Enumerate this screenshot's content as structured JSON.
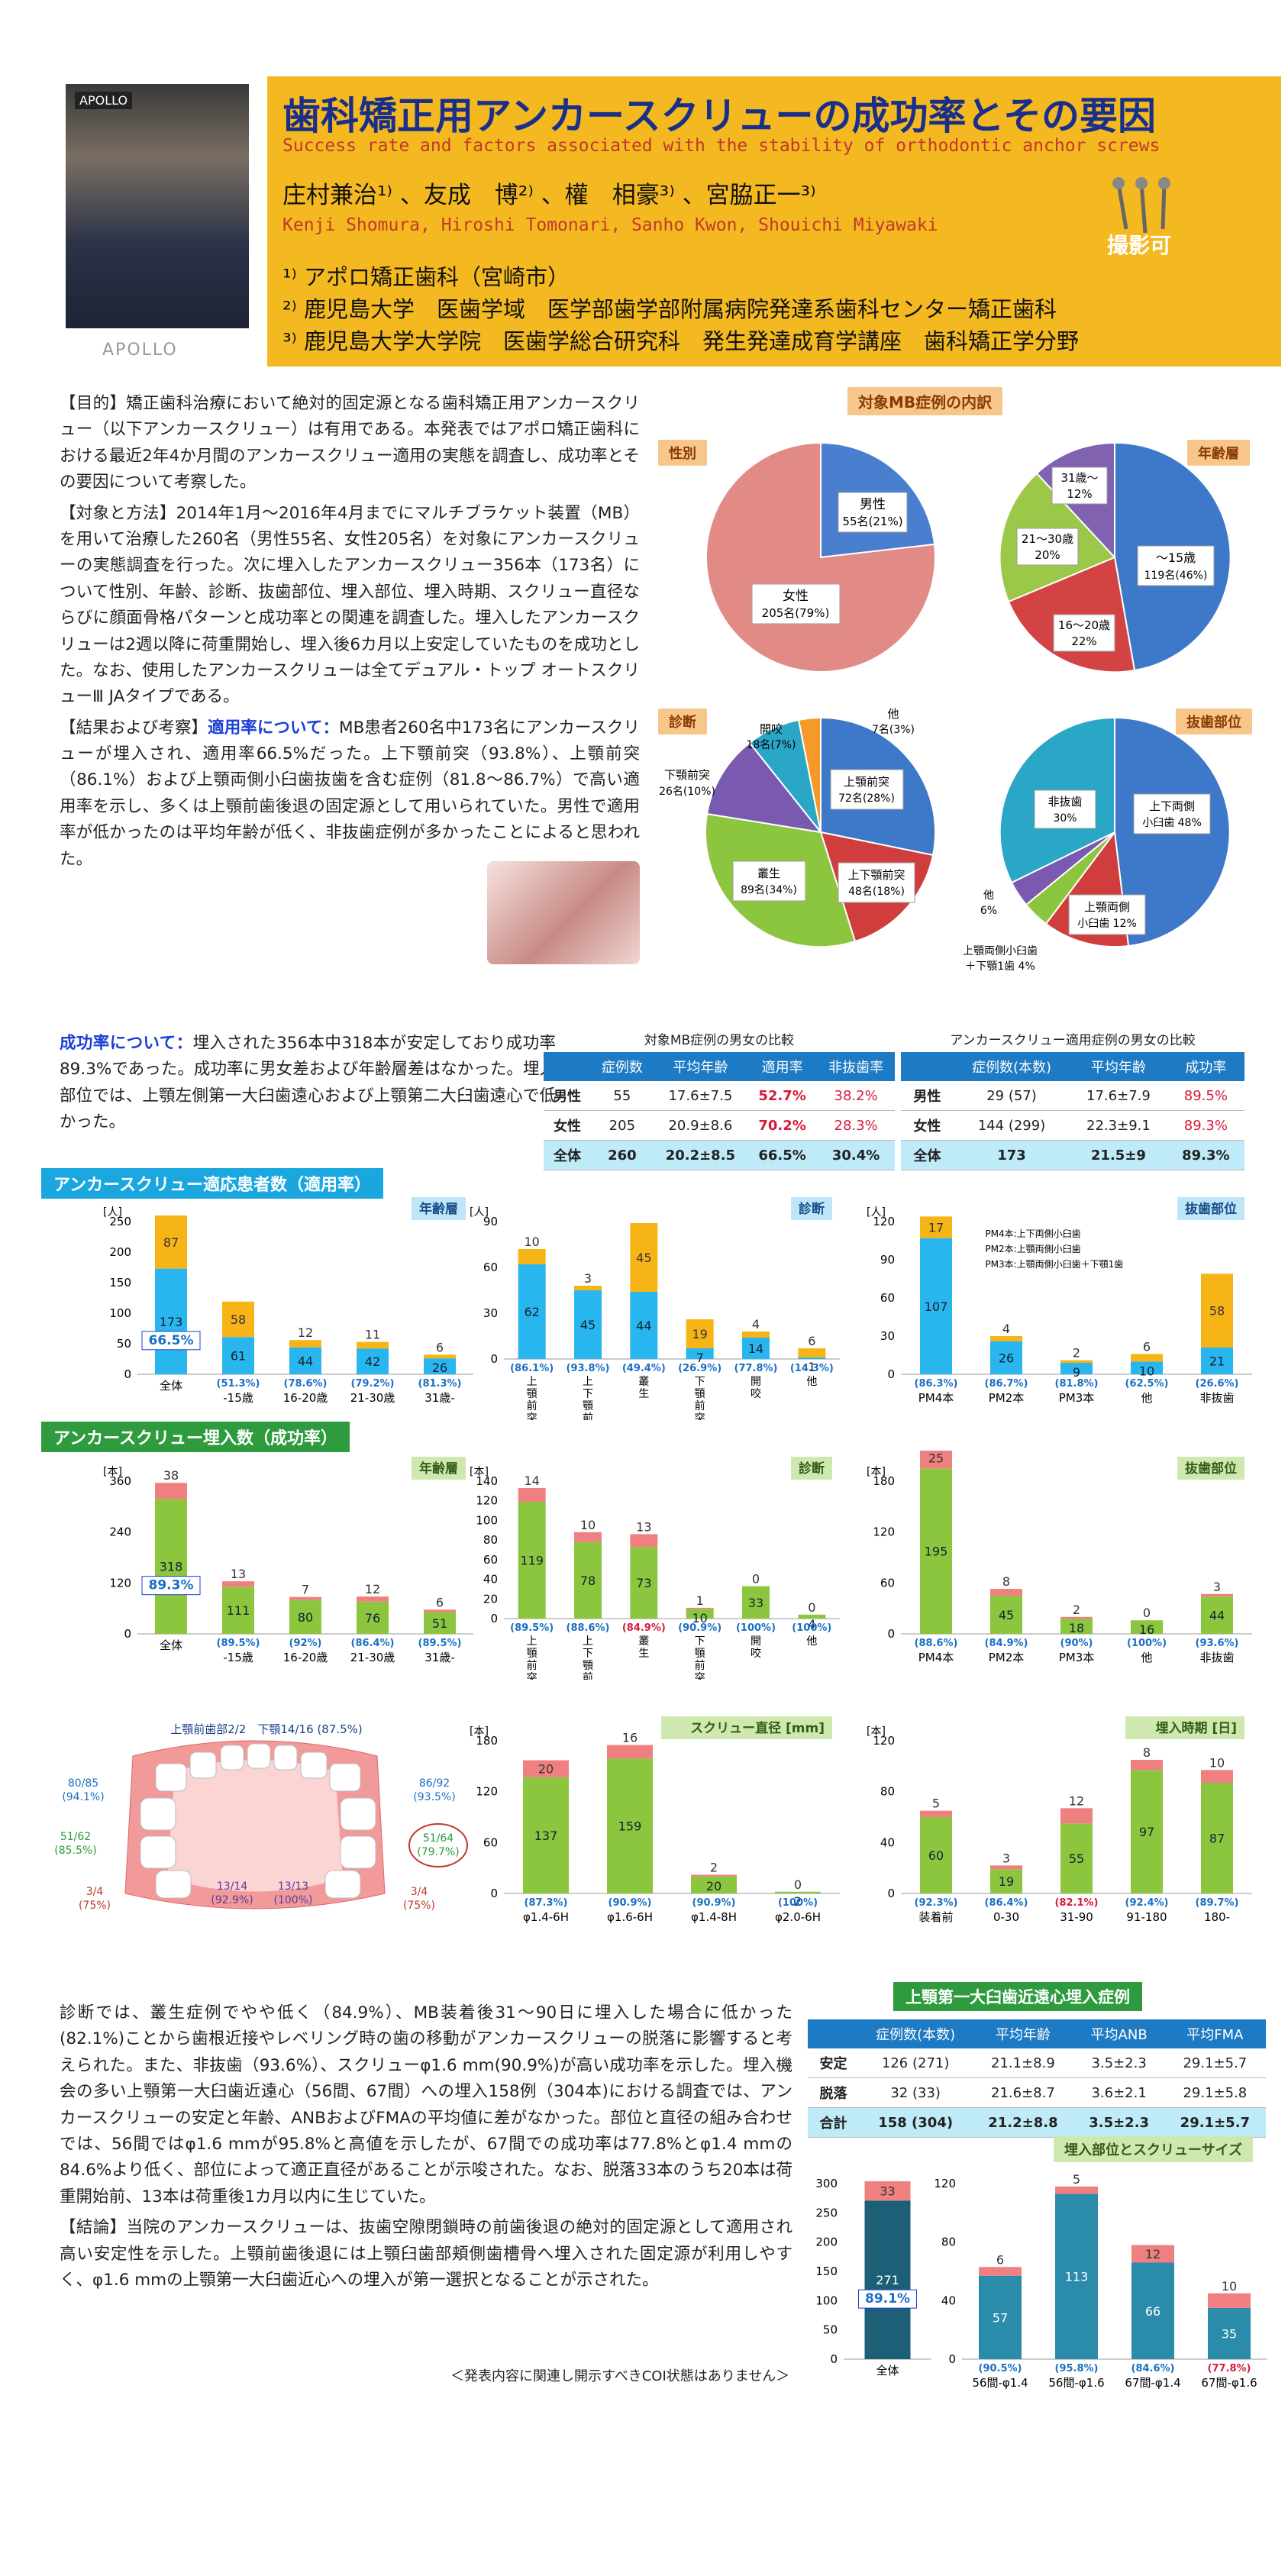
{
  "header": {
    "title": "歯科矯正用アンカースクリューの成功率とその要因",
    "subtitle": "Success rate and factors associated with the stability of orthodontic anchor screws",
    "authors": "庄村兼治¹⁾ 、友成　博²⁾ 、權　相豪³⁾ 、宮脇正一³⁾",
    "authors_en": "Kenji Shomura, Hiroshi Tomonari, Sanho Kwon, Shouichi Miyawaki",
    "affil1": "¹⁾ アポロ矯正歯科（宮崎市）",
    "affil2": "²⁾ 鹿児島大学　医歯学域　医学部歯学部附属病院発達系歯科センター矯正歯科",
    "affil3": "³⁾ 鹿児島大学大学院　医歯学総合研究科　発生発達成育学講座　歯科矯正学分野",
    "photo_logo": "APOLLO",
    "apollo": "APOLLO",
    "photo_ok": "撮影可"
  },
  "intro": {
    "p1": "【目的】矯正歯科治療において絶対的固定源となる歯科矯正用アンカースクリュー（以下アンカースクリュー）は有用である。本発表ではアポロ矯正歯科における最近2年4か月間のアンカースクリュー適用の実態を調査し、成功率とその要因について考察した。",
    "p2": "【対象と方法】2014年1月～2016年4月までにマルチブラケット装置（MB）を用いて治療した260名（男性55名、女性205名）を対象にアンカースクリューの実態調査を行った。次に埋入したアンカースクリュー356本（173名）について性別、年齢、診断、抜歯部位、埋入部位、埋入時期、スクリュー直径ならびに顔面骨格パターンと成功率との関連を調査した。埋入したアンカースクリューは2週以降に荷重開始し、埋入後6カ月以上安定していたものを成功とした。なお、使用したアンカースクリューは全てデュアル・トップ オートスクリューⅢ JAタイプである。",
    "p3a": "【結果および考察】",
    "p3b": "適用率について：",
    "p3c": "MB患者260名中173名にアンカースクリューが埋入され、適用率66.5%だった。上下顎前突（93.8%）、上顎前突（86.1%）および上顎両側小臼歯抜歯を含む症例（81.8～86.7%）で高い適用率を示し、多くは上顎前歯後退の固定源として用いられていた。男性で適用率が低かったのは平均年齢が低く、非抜歯症例が多かったことによると思われた。"
  },
  "success_text": {
    "lead": "成功率について：",
    "body": "埋入された356本中318本が安定しており成功率89.3%であった。成功率に男女差および年齢層差はなかった。埋入部位では、上顎左側第一大臼歯遠心および上顎第二大臼歯遠心で低かった。"
  },
  "pies": {
    "title": "対象MB症例の内訳",
    "gender_label": "性別",
    "age_label": "年齢層",
    "diag_label": "診断",
    "ext_label": "抜歯部位",
    "gender_male": "男性",
    "gender_male_v": "55名(21%)",
    "gender_female": "女性",
    "gender_female_v": "205名(79%)",
    "age_a": "～15歳",
    "age_a_v": "119名(46%)",
    "age_b": "16～20歳",
    "age_b_v": "22%",
    "age_c": "21～30歳",
    "age_c_v": "20%",
    "age_d": "31歳～",
    "age_d_v": "12%",
    "diag_a": "上顎前突",
    "diag_a_v": "72名(28%)",
    "diag_b": "上下顎前突",
    "diag_b_v": "48名(18%)",
    "diag_c": "叢生",
    "diag_c_v": "89名(34%)",
    "diag_d": "下顎前突",
    "diag_d_v": "26名(10%)",
    "diag_e": "開咬",
    "diag_e_v": "18名(7%)",
    "diag_f": "他",
    "diag_f_v": "7名(3%)",
    "ext_a": "上下両側",
    "ext_a2": "小臼歯 48%",
    "ext_b": "上顎両側",
    "ext_b2": "小臼歯 12%",
    "ext_c": "上顎両側小臼歯",
    "ext_c2": "＋下顎1歯 4%",
    "ext_d": "他",
    "ext_d2": "6%",
    "ext_e": "非抜歯",
    "ext_e2": "30%"
  },
  "table1": {
    "caption": "対象MB症例の男女の比較",
    "headers": [
      "",
      "症例数",
      "平均年齢",
      "適用率",
      "非抜歯率"
    ],
    "rows": [
      [
        "男性",
        "55",
        "17.6±7.5",
        "52.7%",
        "38.2%"
      ],
      [
        "女性",
        "205",
        "20.9±8.6",
        "70.2%",
        "28.3%"
      ],
      [
        "全体",
        "260",
        "20.2±8.5",
        "66.5%",
        "30.4%"
      ]
    ]
  },
  "table2": {
    "caption": "アンカースクリュー適用症例の男女の比較",
    "headers": [
      "",
      "症例数(本数)",
      "平均年齢",
      "成功率"
    ],
    "rows": [
      [
        "男性",
        "29 (57)",
        "17.6±7.9",
        "89.5%"
      ],
      [
        "女性",
        "144 (299)",
        "22.3±9.1",
        "89.3%"
      ],
      [
        "全体",
        "173",
        "21.5±9",
        "89.3%"
      ]
    ]
  },
  "section1": "アンカースクリュー適応患者数（適用率）",
  "section2": "アンカースクリュー埋入数（成功率）",
  "charts1": {
    "unit": "[人]",
    "age": {
      "label": "年齢層",
      "yticks": [
        "250",
        "200",
        "150",
        "100",
        "50",
        "0"
      ],
      "cats": [
        "全体",
        "-15歳",
        "16-20歳",
        "21-30歳",
        "31歳-"
      ],
      "bottom": [
        173,
        61,
        44,
        42,
        26
      ],
      "top": [
        87,
        58,
        12,
        11,
        6
      ],
      "rates": [
        "66.5%",
        "(51.3%)",
        "(78.6%)",
        "(79.2%)",
        "(81.3%)"
      ]
    },
    "diag": {
      "label": "診断",
      "yticks": [
        "90",
        "60",
        "30",
        "0"
      ],
      "cats": [
        "上顎前突",
        "上下顎前突",
        "叢生",
        "下顎前突",
        "開咬",
        "他"
      ],
      "bottom": [
        62,
        45,
        44,
        7,
        14,
        1
      ],
      "top": [
        10,
        3,
        45,
        19,
        4,
        6
      ],
      "rates": [
        "(86.1%)",
        "(93.8%)",
        "(49.4%)",
        "(26.9%)",
        "(77.8%)",
        "(14.3%)"
      ]
    },
    "ext": {
      "label": "抜歯部位",
      "yticks": [
        "120",
        "90",
        "60",
        "30",
        "0"
      ],
      "cats": [
        "PM4本",
        "PM2本",
        "PM3本",
        "他",
        "非抜歯"
      ],
      "bottom": [
        107,
        26,
        9,
        10,
        21
      ],
      "top": [
        17,
        4,
        2,
        6,
        58
      ],
      "rates": [
        "(86.3%)",
        "(86.7%)",
        "(81.8%)",
        "(62.5%)",
        "(26.6%)"
      ],
      "notes": [
        "PM4本:上下両側小臼歯",
        "PM2本:上顎両側小臼歯",
        "PM3本:上顎両側小臼歯＋下顎1歯"
      ]
    }
  },
  "charts2": {
    "unit": "[本]",
    "age": {
      "label": "年齢層",
      "yticks": [
        "360",
        "240",
        "120",
        "0"
      ],
      "cats": [
        "全体",
        "-15歳",
        "16-20歳",
        "21-30歳",
        "31歳-"
      ],
      "bottom": [
        318,
        111,
        80,
        76,
        51
      ],
      "top": [
        38,
        13,
        7,
        12,
        6
      ],
      "rates": [
        "89.3%",
        "(89.5%)",
        "(92%)",
        "(86.4%)",
        "(89.5%)"
      ]
    },
    "diag": {
      "label": "診断",
      "yticks": [
        "140",
        "120",
        "100",
        "80",
        "60",
        "40",
        "20",
        "0"
      ],
      "cats": [
        "上顎前突",
        "上下顎前突",
        "叢生",
        "下顎前突",
        "開咬",
        "他"
      ],
      "bottom": [
        119,
        78,
        73,
        10,
        33,
        4
      ],
      "top": [
        14,
        10,
        13,
        1,
        0,
        0
      ],
      "rates": [
        "(89.5%)",
        "(88.6%)",
        "(84.9%)",
        "(90.9%)",
        "(100%)",
        "(100%)"
      ]
    },
    "ext": {
      "label": "抜歯部位",
      "yticks": [
        "180",
        "120",
        "60",
        "0"
      ],
      "cats": [
        "PM4本",
        "PM2本",
        "PM3本",
        "他",
        "非抜歯"
      ],
      "bottom": [
        195,
        45,
        18,
        16,
        44
      ],
      "top": [
        25,
        8,
        2,
        0,
        3
      ],
      "rates": [
        "(88.6%)",
        "(84.9%)",
        "(90%)",
        "(100%)",
        "(93.6%)"
      ]
    },
    "dia": {
      "label": "スクリュー直径 [mm]",
      "yticks": [
        "180",
        "120",
        "60",
        "0"
      ],
      "cats": [
        "φ1.4-6H",
        "φ1.6-6H",
        "φ1.4-8H",
        "φ2.0-6H"
      ],
      "bottom": [
        137,
        159,
        20,
        2
      ],
      "top": [
        20,
        16,
        2,
        0
      ],
      "rates": [
        "(87.3%)",
        "(90.9%)",
        "(90.9%)",
        "(100%)"
      ]
    },
    "time": {
      "label": "埋入時期 [日]",
      "yticks": [
        "120",
        "80",
        "40",
        "0"
      ],
      "cats": [
        "装着前",
        "0-30",
        "31-90",
        "91-180",
        "180-"
      ],
      "bottom": [
        60,
        19,
        55,
        97,
        87
      ],
      "top": [
        5,
        3,
        12,
        8,
        10
      ],
      "rates": [
        "(92.3%)",
        "(86.4%)",
        "(82.1%)",
        "(92.4%)",
        "(89.7%)"
      ]
    }
  },
  "tooth": {
    "top": "上顎前歯部2/2　下顎14/16 (87.5%)",
    "l1": "80/85",
    "l1r": "(94.1%)",
    "l2": "51/62",
    "l2r": "(85.5%)",
    "l3": "3/4",
    "l3r": "(75%)",
    "l4": "13/14",
    "l4r": "(92.9%)",
    "l5": "13/13",
    "l5r": "(100%)",
    "r1": "86/92",
    "r1r": "(93.5%)",
    "r2": "51/64",
    "r2r": "(79.7%)",
    "r3": "3/4",
    "r3r": "(75%)"
  },
  "discussion": {
    "p1": "診断では、叢生症例でやや低く（84.9%）、MB装着後31～90日に埋入した場合に低かった(82.1%)ことから歯根近接やレベリング時の歯の移動がアンカースクリューの脱落に影響すると考えられた。また、非抜歯（93.6%）、スクリューφ1.6 mm(90.9%)が高い成功率を示した。埋入機会の多い上顎第一大臼歯近遠心（56間、67間）への埋入158例（304本)における調査では、アンカースクリューの安定と年齢、ANBおよびFMAの平均値に差がなかった。部位と直径の組み合わせでは、56間ではφ1.6 mmが95.8%と高値を示したが、67間での成功率は77.8%とφ1.4 mmの84.6%より低く、部位によって適正直径があることが示唆された。なお、脱落33本のうち20本は荷重開始前、13本は荷重後1カ月以内に生じていた。",
    "p2": "【結論】当院のアンカースクリューは、抜歯空隙閉鎖時の前歯後退の絶対的固定源として適用され高い安定性を示した。上顎前歯後退には上顎臼歯部頬側歯槽骨へ埋入された固定源が利用しやすく、φ1.6 mmの上顎第一大臼歯近心への埋入が第一選択となることが示された。",
    "coi": "＜発表内容に関連し開示すべきCOI状態はありません＞"
  },
  "table3": {
    "title": "上顎第一大臼歯近遠心埋入症例",
    "headers": [
      "",
      "症例数(本数)",
      "平均年齢",
      "平均ANB",
      "平均FMA"
    ],
    "rows": [
      [
        "安定",
        "126 (271)",
        "21.1±8.9",
        "3.5±2.3",
        "29.1±5.7"
      ],
      [
        "脱落",
        "32 (33)",
        "21.6±8.7",
        "3.6±2.1",
        "29.1±5.8"
      ],
      [
        "合計",
        "158 (304)",
        "21.2±8.8",
        "3.5±2.3",
        "29.1±5.7"
      ]
    ]
  },
  "site_chart": {
    "label": "埋入部位とスクリューサイズ",
    "all": {
      "yticks": [
        "300",
        "250",
        "200",
        "150",
        "100",
        "50",
        "0"
      ],
      "cat": "全体",
      "bottom": 271,
      "top": 33,
      "rate": "89.1%"
    },
    "sub": {
      "yticks": [
        "120",
        "80",
        "40",
        "0"
      ],
      "cats": [
        "56間-φ1.4",
        "56間-φ1.6",
        "67間-φ1.4",
        "67間-φ1.6"
      ],
      "bottom": [
        57,
        113,
        66,
        35
      ],
      "top": [
        6,
        5,
        12,
        10
      ],
      "rates": [
        "(90.5%)",
        "(95.8%)",
        "(84.6%)",
        "(77.8%)"
      ]
    }
  },
  "colors": {
    "blue_bar": "#29b6ef",
    "orange_bar": "#f7b416",
    "green_bar": "#8cc63f",
    "pink_bar": "#f08080",
    "teal_bar": "#2a8caa",
    "dark_teal": "#1e5f78"
  }
}
